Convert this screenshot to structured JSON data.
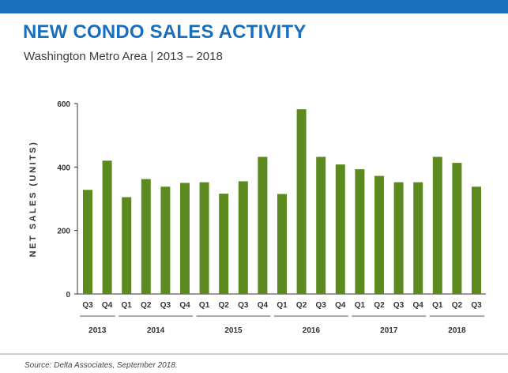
{
  "colors": {
    "accent": "#1a6fbd",
    "bar": "#5c8a1e",
    "axis": "#333333",
    "year_rule": "#555555",
    "footer_rule": "#cfcfcf"
  },
  "title": "NEW CONDO SALES ACTIVITY",
  "subtitle": "Washington Metro Area  |  2013 – 2018",
  "source": "Source: Delta Associates, September 2018.",
  "chart_data": {
    "type": "bar",
    "categories": [
      "Q3",
      "Q4",
      "Q1",
      "Q2",
      "Q3",
      "Q4",
      "Q1",
      "Q2",
      "Q3",
      "Q4",
      "Q1",
      "Q2",
      "Q3",
      "Q4",
      "Q1",
      "Q2",
      "Q3",
      "Q4",
      "Q1",
      "Q2",
      "Q3"
    ],
    "groups": [
      {
        "label": "2013",
        "count": 2
      },
      {
        "label": "2014",
        "count": 4
      },
      {
        "label": "2015",
        "count": 4
      },
      {
        "label": "2016",
        "count": 4
      },
      {
        "label": "2017",
        "count": 4
      },
      {
        "label": "2018",
        "count": 3
      }
    ],
    "series": [
      {
        "values": [
          328,
          420,
          305,
          362,
          338,
          350,
          352,
          316,
          355,
          432,
          315,
          582,
          432,
          408,
          393,
          372,
          352,
          352,
          432,
          413,
          338
        ]
      }
    ],
    "xlabel": "",
    "ylabel": "NET SALES (UNITS)",
    "ylim": [
      0,
      600
    ],
    "yticks": [
      0,
      200,
      400,
      600
    ],
    "grid": false,
    "legend": "none"
  }
}
